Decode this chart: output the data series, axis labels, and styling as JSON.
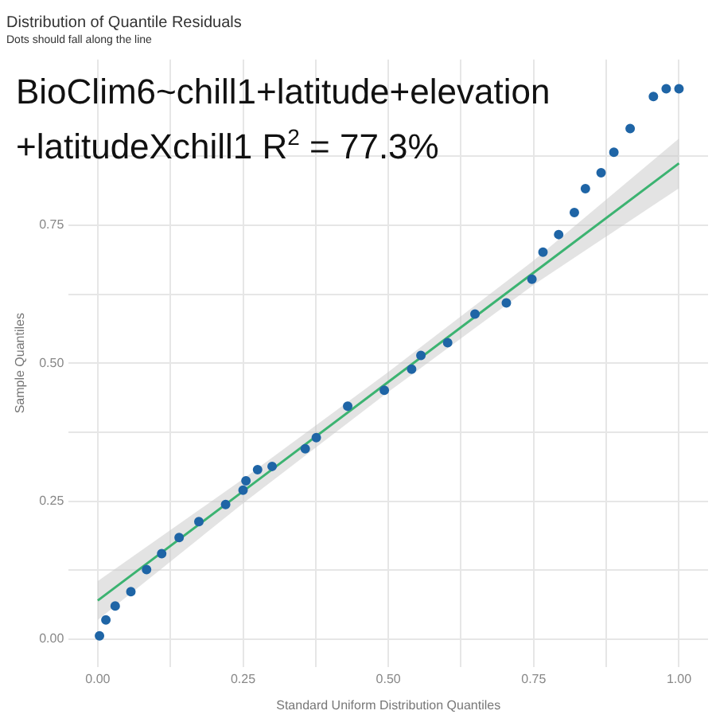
{
  "chart_data": {
    "type": "scatter",
    "title": "Distribution of Quantile Residuals",
    "subtitle": "Dots should fall along the line",
    "xlabel": "Standard Uniform Distribution Quantiles",
    "ylabel": "Sample Quantiles",
    "annotations": [
      "BioClim6~chill1+latitude+elevation",
      "+latitudeXchill1 R$^{2}$ = 77.3%"
    ],
    "xlim": [
      -0.05,
      1.05
    ],
    "ylim": [
      -0.05,
      1.05
    ],
    "xticks": [
      {
        "value": 0,
        "label": "0.00"
      },
      {
        "value": 0.125,
        "label": null
      },
      {
        "value": 0.25,
        "label": "0.25"
      },
      {
        "value": 0.375,
        "label": null
      },
      {
        "value": 0.5,
        "label": "0.50"
      },
      {
        "value": 0.625,
        "label": null
      },
      {
        "value": 0.75,
        "label": "0.75"
      },
      {
        "value": 0.875,
        "label": null
      },
      {
        "value": 1,
        "label": "1.00"
      }
    ],
    "yticks": [
      {
        "value": 0,
        "label": "0.00"
      },
      {
        "value": 0.125,
        "label": null
      },
      {
        "value": 0.25,
        "label": "0.25"
      },
      {
        "value": 0.375,
        "label": null
      },
      {
        "value": 0.5,
        "label": "0.50"
      },
      {
        "value": 0.625,
        "label": null
      },
      {
        "value": 0.75,
        "label": "0.75"
      },
      {
        "value": 0.875,
        "label": null
      }
    ],
    "grid": true,
    "legend": false,
    "series": [
      {
        "marker": "circle",
        "color": "#1f65a6",
        "x": [
          0.003,
          0.014,
          0.03,
          0.057,
          0.084,
          0.11,
          0.14,
          0.174,
          0.22,
          0.25,
          0.255,
          0.275,
          0.3,
          0.357,
          0.376,
          0.43,
          0.493,
          0.54,
          0.556,
          0.602,
          0.649,
          0.703,
          0.747,
          0.766,
          0.793,
          0.82,
          0.839,
          0.866,
          0.888,
          0.916,
          0.956,
          0.978,
          1.0
        ],
        "values": [
          0.006,
          0.035,
          0.06,
          0.086,
          0.126,
          0.155,
          0.184,
          0.213,
          0.244,
          0.27,
          0.287,
          0.307,
          0.313,
          0.345,
          0.365,
          0.422,
          0.451,
          0.489,
          0.514,
          0.537,
          0.589,
          0.609,
          0.652,
          0.701,
          0.733,
          0.773,
          0.816,
          0.845,
          0.882,
          0.925,
          0.983,
          0.997,
          0.997
        ]
      },
      {
        "type": "line",
        "marker": "none",
        "color": "#3cb371",
        "x": [
          0,
          0.25,
          0.5,
          0.75,
          1
        ],
        "values": [
          0.07,
          0.268,
          0.466,
          0.664,
          0.862
        ],
        "lower": [
          0.035,
          0.246,
          0.448,
          0.642,
          0.817
        ],
        "upper": [
          0.105,
          0.29,
          0.484,
          0.686,
          0.907
        ]
      }
    ]
  }
}
